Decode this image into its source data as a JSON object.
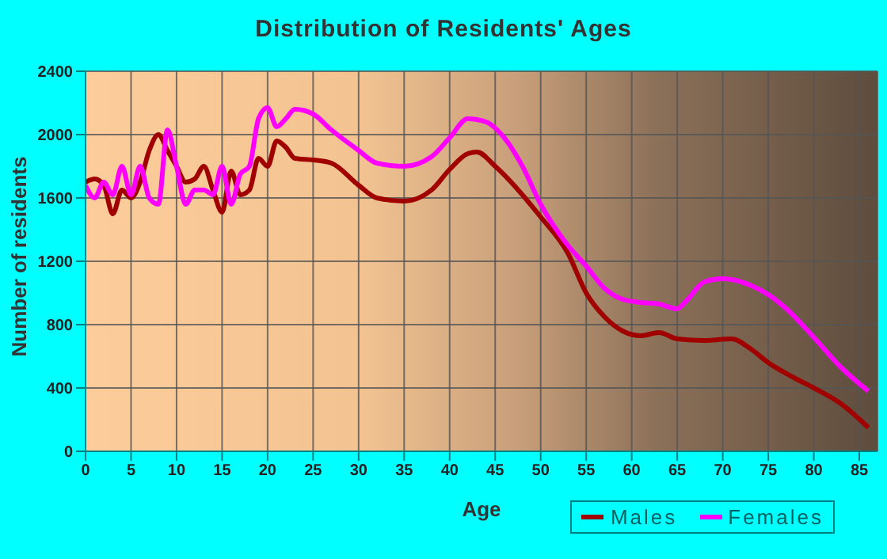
{
  "chart_data": {
    "type": "line",
    "title": "Distribution of Residents' Ages",
    "xlabel": "Age",
    "ylabel": "Number of residents",
    "xlim": [
      0,
      87
    ],
    "xticks": [
      0,
      5,
      10,
      15,
      20,
      25,
      30,
      35,
      40,
      45,
      50,
      55,
      60,
      65,
      70,
      75,
      80,
      85
    ],
    "ylim": [
      0,
      2400
    ],
    "yticks": [
      0,
      400,
      800,
      1200,
      1600,
      2000,
      2400
    ],
    "grid": true,
    "legend": "bottom right",
    "marker": "none",
    "line_style": "solid",
    "series": [
      {
        "name": "Males",
        "color": "#a00000",
        "x": [
          0,
          1,
          2,
          3,
          4,
          5,
          6,
          7,
          8,
          9,
          10,
          11,
          12,
          13,
          14,
          15,
          16,
          17,
          18,
          19,
          20,
          21,
          22,
          23,
          25,
          27,
          30,
          32,
          35,
          38,
          40,
          42,
          43,
          45,
          50,
          53,
          55,
          57,
          59,
          61,
          63,
          65,
          68,
          71,
          73,
          75,
          78,
          80,
          83,
          86
        ],
        "values": [
          1700,
          1720,
          1680,
          1500,
          1650,
          1600,
          1700,
          1900,
          2000,
          1900,
          1800,
          1700,
          1720,
          1800,
          1650,
          1510,
          1770,
          1620,
          1650,
          1850,
          1800,
          1960,
          1920,
          1850,
          1840,
          1820,
          1680,
          1600,
          1580,
          1650,
          1780,
          1880,
          1890,
          1800,
          1480,
          1250,
          1000,
          850,
          760,
          730,
          750,
          710,
          700,
          710,
          650,
          560,
          460,
          400,
          300,
          150
        ]
      },
      {
        "name": "Females",
        "color": "#ff00ff",
        "x": [
          0,
          1,
          2,
          3,
          4,
          5,
          6,
          7,
          8,
          9,
          10,
          11,
          12,
          13,
          14,
          15,
          16,
          17,
          18,
          19,
          20,
          21,
          22,
          23,
          25,
          27,
          30,
          32,
          35,
          38,
          40,
          42,
          44,
          46,
          48,
          50,
          53,
          55,
          57,
          59,
          61,
          63,
          65,
          66,
          68,
          70,
          73,
          75,
          77,
          80,
          83,
          86
        ],
        "values": [
          1680,
          1600,
          1700,
          1620,
          1800,
          1620,
          1800,
          1600,
          1560,
          2030,
          1800,
          1560,
          1650,
          1650,
          1620,
          1800,
          1560,
          1750,
          1800,
          2100,
          2170,
          2050,
          2100,
          2160,
          2130,
          2030,
          1900,
          1820,
          1800,
          1860,
          1980,
          2100,
          2080,
          1980,
          1800,
          1560,
          1300,
          1170,
          1030,
          960,
          940,
          930,
          900,
          950,
          1070,
          1090,
          1050,
          990,
          900,
          720,
          530,
          380
        ]
      }
    ]
  }
}
